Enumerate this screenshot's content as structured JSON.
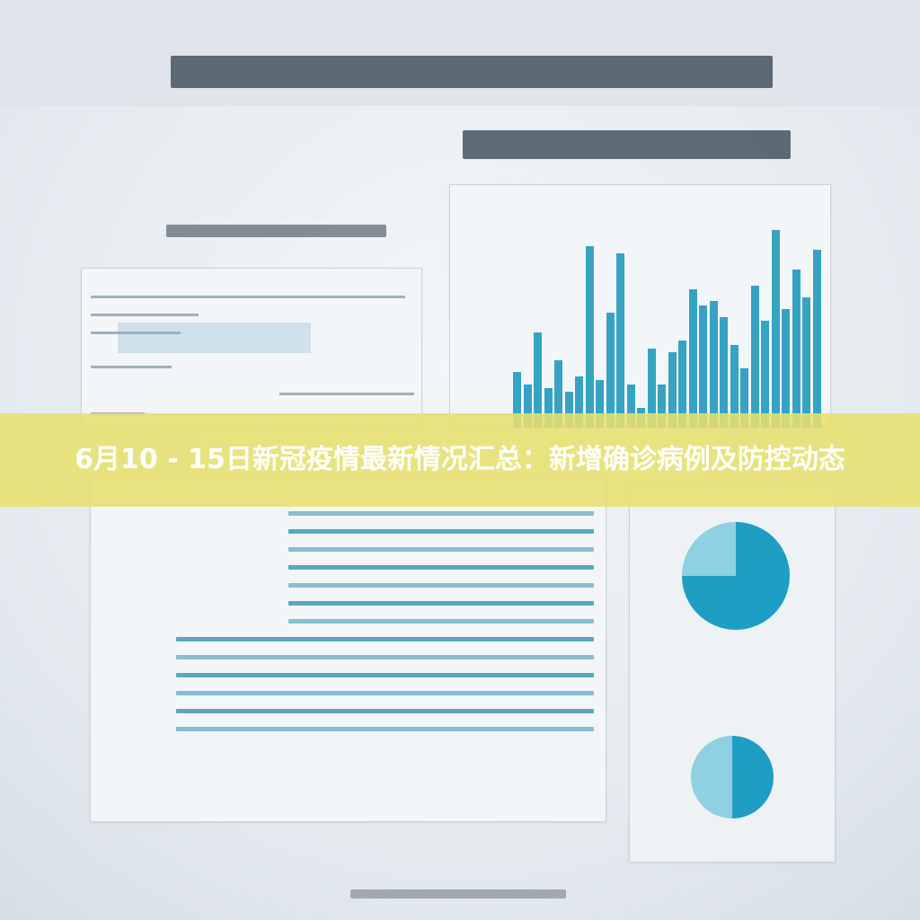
{
  "banner": {
    "title": "6月10 - 15日新冠疫情最新情况汇总：新增确诊病例及防控动态"
  },
  "colors": {
    "accent": "#36a3c3",
    "banner": "#e6e06e",
    "pie_light": "#8fd0e2",
    "pie_dark": "#1e9ec4"
  },
  "chart_data": {
    "type": "bar",
    "values": [
      28,
      22,
      48,
      20,
      34,
      18,
      26,
      92,
      24,
      58,
      88,
      22,
      10,
      40,
      22,
      38,
      44,
      70,
      62,
      64,
      56,
      42,
      30,
      72,
      54,
      100,
      60,
      80,
      66,
      90
    ]
  },
  "pies": [
    {
      "light_fraction": 0.25
    },
    {
      "light_fraction": 0.5
    }
  ]
}
